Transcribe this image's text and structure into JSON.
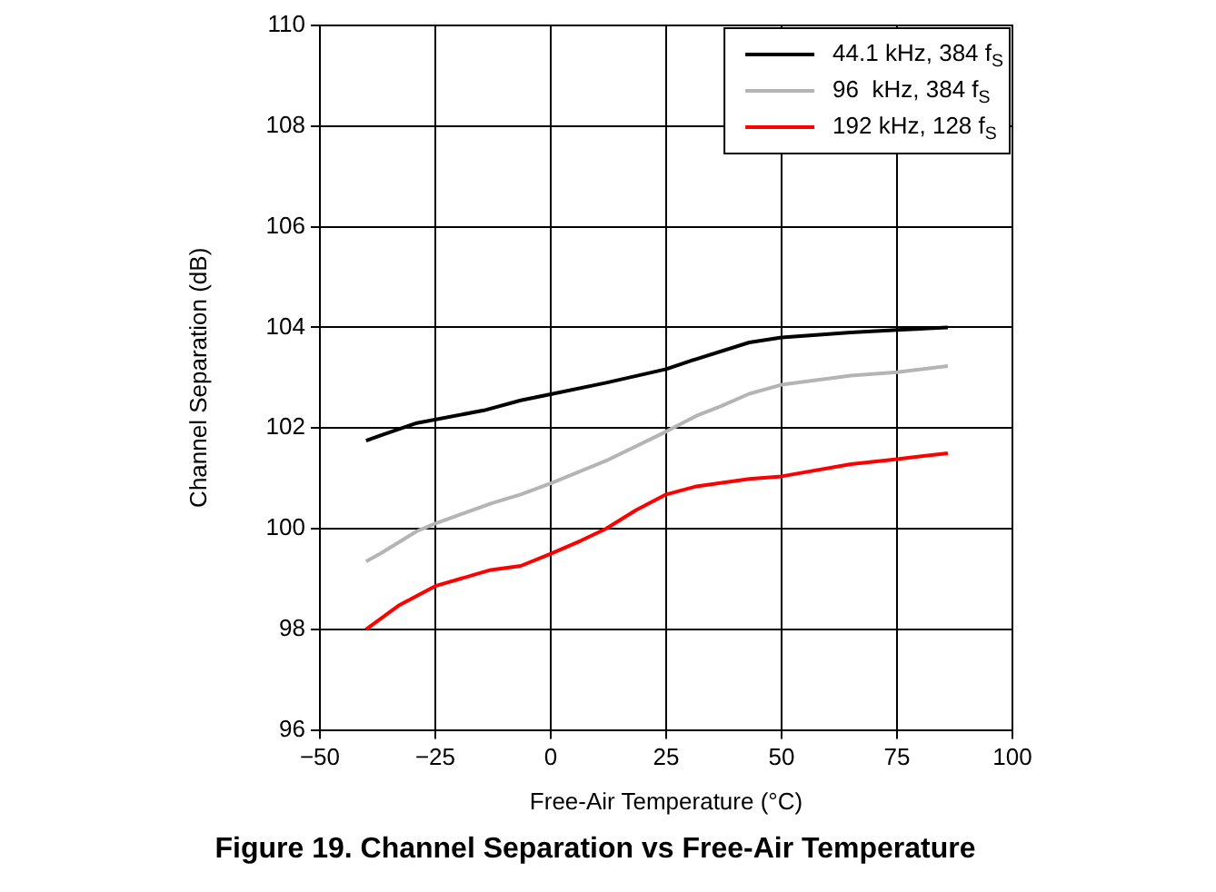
{
  "chart_data": {
    "type": "line",
    "title": "Figure 19. Channel Separation vs Free-Air Temperature",
    "xlabel": "Free-Air Temperature (°C)",
    "ylabel": "Channel Separation (dB)",
    "xlim": [
      -50,
      100
    ],
    "xticks": [
      -50,
      -25,
      0,
      25,
      50,
      75,
      100
    ],
    "ylim": [
      96,
      110
    ],
    "yticks": [
      96,
      98,
      100,
      102,
      104,
      106,
      108,
      110
    ],
    "grid": true,
    "legend": "top right",
    "marker": "none",
    "line_style": "solid",
    "series": [
      {
        "name": "44.1 kHz, 384 f$_{S}$",
        "color": "#000000",
        "x": [
          -40,
          -37,
          -29,
          -14.5,
          -6.5,
          0,
          12,
          25,
          31.5,
          43,
          50,
          65,
          75,
          86
        ],
        "values": [
          101.75,
          101.85,
          102.1,
          102.35,
          102.55,
          102.67,
          102.9,
          103.17,
          103.37,
          103.7,
          103.8,
          103.9,
          103.95,
          104.0
        ]
      },
      {
        "name": "96  kHz, 384 f$_{S}$",
        "color": "#b4b4b4",
        "x": [
          -40,
          -37,
          -29,
          -25,
          -13,
          -6.5,
          0,
          12,
          25,
          31.5,
          37,
          43,
          50,
          65,
          75,
          86
        ],
        "values": [
          99.35,
          99.5,
          99.95,
          100.1,
          100.5,
          100.68,
          100.9,
          101.35,
          101.93,
          102.24,
          102.44,
          102.68,
          102.86,
          103.04,
          103.11,
          103.23
        ]
      },
      {
        "name": "192 kHz, 128 f$_{S}$",
        "color": "#ff0000",
        "x": [
          -40,
          -33,
          -25,
          -13,
          -6.5,
          0,
          6.5,
          12,
          18.5,
          25,
          31.5,
          43,
          50,
          65,
          75,
          86
        ],
        "values": [
          98.0,
          98.47,
          98.86,
          99.18,
          99.26,
          99.5,
          99.76,
          100.0,
          100.37,
          100.68,
          100.84,
          100.99,
          101.04,
          101.28,
          101.38,
          101.5
        ]
      }
    ]
  }
}
